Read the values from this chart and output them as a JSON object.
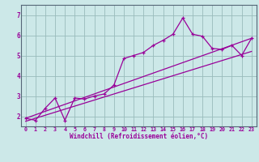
{
  "title": "",
  "xlabel": "Windchill (Refroidissement éolien,°C)",
  "ylabel": "",
  "bg_color": "#cce8e8",
  "line_color": "#990099",
  "grid_color": "#99bbbb",
  "xlim": [
    -0.5,
    23.5
  ],
  "ylim": [
    1.5,
    7.5
  ],
  "xticks": [
    0,
    1,
    2,
    3,
    4,
    5,
    6,
    7,
    8,
    9,
    10,
    11,
    12,
    13,
    14,
    15,
    16,
    17,
    18,
    19,
    20,
    21,
    22,
    23
  ],
  "yticks": [
    2,
    3,
    4,
    5,
    6,
    7
  ],
  "series1_x": [
    0,
    1,
    2,
    3,
    4,
    5,
    6,
    7,
    8,
    9,
    10,
    11,
    12,
    13,
    14,
    15,
    16,
    17,
    18,
    19,
    20,
    21,
    22,
    23
  ],
  "series1_y": [
    1.9,
    1.8,
    2.4,
    2.9,
    1.8,
    2.9,
    2.85,
    3.0,
    3.1,
    3.55,
    4.85,
    5.0,
    5.15,
    5.5,
    5.75,
    6.05,
    6.85,
    6.05,
    5.95,
    5.35,
    5.3,
    5.5,
    5.0,
    5.85
  ],
  "series2_x": [
    0,
    23
  ],
  "series2_y": [
    1.9,
    5.85
  ],
  "series3_x": [
    0,
    23
  ],
  "series3_y": [
    1.75,
    5.2
  ],
  "xlabel_fontsize": 5.5,
  "tick_fontsize_x": 4.8,
  "tick_fontsize_y": 5.5
}
